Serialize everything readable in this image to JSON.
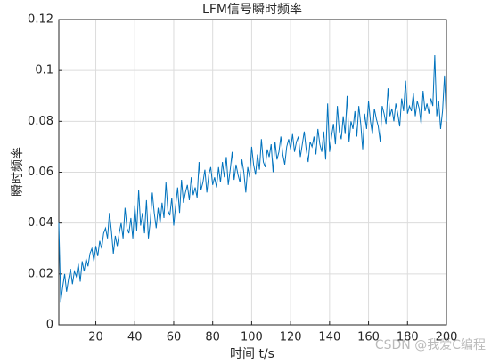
{
  "chart_data": {
    "type": "line",
    "title": "LFM信号瞬时频率",
    "x_label": "时间 t/s",
    "y_label": "瞬时频率",
    "x": [
      1,
      2,
      3,
      4,
      5,
      6,
      7,
      8,
      9,
      10,
      11,
      12,
      13,
      14,
      15,
      16,
      17,
      18,
      19,
      20,
      21,
      22,
      23,
      24,
      25,
      26,
      27,
      28,
      29,
      30,
      31,
      32,
      33,
      34,
      35,
      36,
      37,
      38,
      39,
      40,
      41,
      42,
      43,
      44,
      45,
      46,
      47,
      48,
      49,
      50,
      51,
      52,
      53,
      54,
      55,
      56,
      57,
      58,
      59,
      60,
      61,
      62,
      63,
      64,
      65,
      66,
      67,
      68,
      69,
      70,
      71,
      72,
      73,
      74,
      75,
      76,
      77,
      78,
      79,
      80,
      81,
      82,
      83,
      84,
      85,
      86,
      87,
      88,
      89,
      90,
      91,
      92,
      93,
      94,
      95,
      96,
      97,
      98,
      99,
      100,
      101,
      102,
      103,
      104,
      105,
      106,
      107,
      108,
      109,
      110,
      111,
      112,
      113,
      114,
      115,
      116,
      117,
      118,
      119,
      120,
      121,
      122,
      123,
      124,
      125,
      126,
      127,
      128,
      129,
      130,
      131,
      132,
      133,
      134,
      135,
      136,
      137,
      138,
      139,
      140,
      141,
      142,
      143,
      144,
      145,
      146,
      147,
      148,
      149,
      150,
      151,
      152,
      153,
      154,
      155,
      156,
      157,
      158,
      159,
      160,
      161,
      162,
      163,
      164,
      165,
      166,
      167,
      168,
      169,
      170,
      171,
      172,
      173,
      174,
      175,
      176,
      177,
      178,
      179,
      180,
      181,
      182,
      183,
      184,
      185,
      186,
      187,
      188,
      189,
      190,
      191,
      192,
      193,
      194,
      195,
      196,
      197,
      198,
      199,
      200
    ],
    "series": [
      {
        "name": "瞬时频率",
        "color": "#0072bd",
        "values": [
          0.04,
          0.009,
          0.015,
          0.02,
          0.013,
          0.018,
          0.022,
          0.016,
          0.021,
          0.019,
          0.024,
          0.017,
          0.025,
          0.021,
          0.026,
          0.023,
          0.028,
          0.03,
          0.025,
          0.031,
          0.027,
          0.033,
          0.03,
          0.036,
          0.038,
          0.034,
          0.044,
          0.037,
          0.028,
          0.035,
          0.031,
          0.036,
          0.04,
          0.034,
          0.046,
          0.038,
          0.036,
          0.042,
          0.034,
          0.047,
          0.037,
          0.053,
          0.039,
          0.044,
          0.036,
          0.049,
          0.034,
          0.041,
          0.052,
          0.044,
          0.038,
          0.046,
          0.04,
          0.048,
          0.042,
          0.056,
          0.045,
          0.043,
          0.05,
          0.039,
          0.047,
          0.054,
          0.044,
          0.057,
          0.048,
          0.052,
          0.055,
          0.049,
          0.058,
          0.051,
          0.054,
          0.05,
          0.064,
          0.053,
          0.056,
          0.061,
          0.052,
          0.059,
          0.062,
          0.055,
          0.058,
          0.054,
          0.062,
          0.056,
          0.064,
          0.058,
          0.066,
          0.055,
          0.061,
          0.068,
          0.057,
          0.063,
          0.059,
          0.056,
          0.065,
          0.06,
          0.052,
          0.062,
          0.058,
          0.07,
          0.063,
          0.059,
          0.067,
          0.061,
          0.073,
          0.064,
          0.062,
          0.069,
          0.066,
          0.071,
          0.06,
          0.072,
          0.065,
          0.068,
          0.074,
          0.067,
          0.063,
          0.07,
          0.073,
          0.069,
          0.075,
          0.068,
          0.072,
          0.074,
          0.066,
          0.071,
          0.076,
          0.069,
          0.064,
          0.072,
          0.07,
          0.074,
          0.067,
          0.077,
          0.071,
          0.068,
          0.076,
          0.065,
          0.087,
          0.068,
          0.074,
          0.079,
          0.071,
          0.086,
          0.076,
          0.073,
          0.082,
          0.075,
          0.09,
          0.072,
          0.08,
          0.077,
          0.084,
          0.074,
          0.086,
          0.079,
          0.069,
          0.083,
          0.077,
          0.088,
          0.08,
          0.075,
          0.085,
          0.081,
          0.078,
          0.072,
          0.086,
          0.083,
          0.079,
          0.093,
          0.082,
          0.085,
          0.08,
          0.087,
          0.083,
          0.078,
          0.089,
          0.084,
          0.096,
          0.083,
          0.086,
          0.084,
          0.091,
          0.082,
          0.088,
          0.085,
          0.079,
          0.092,
          0.084,
          0.087,
          0.083,
          0.089,
          0.086,
          0.106,
          0.082,
          0.088,
          0.077,
          0.084,
          0.098,
          0.08
        ]
      }
    ],
    "xlim": [
      1,
      200
    ],
    "xticks": [
      20,
      40,
      60,
      80,
      100,
      120,
      140,
      160,
      180,
      200
    ],
    "ylim": [
      0,
      0.12
    ],
    "yticks": [
      0,
      0.02,
      0.04,
      0.06,
      0.08,
      0.1,
      0.12
    ],
    "grid": true,
    "watermark": "CSDN @我爱C编程"
  }
}
